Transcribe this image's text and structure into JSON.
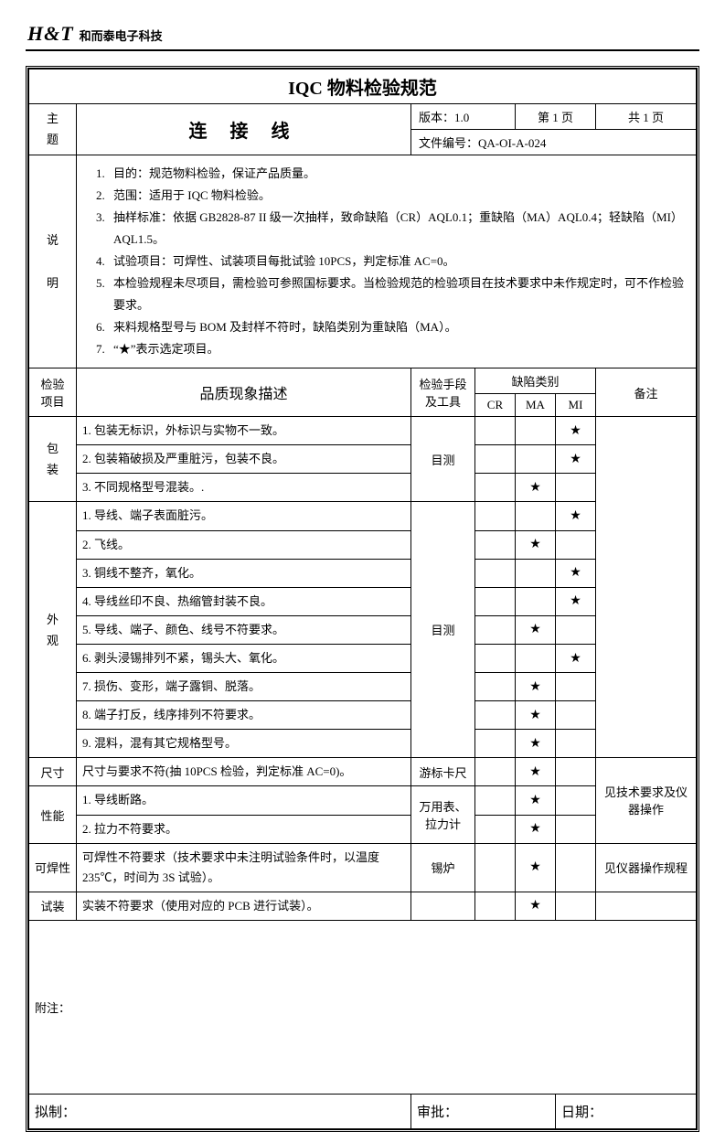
{
  "header": {
    "logo": "H&T",
    "company": "和而泰电子科技"
  },
  "doc": {
    "title": "IQC 物料检验规范",
    "subject_label": "主题",
    "subject": "连 接 线",
    "version_label": "版本：",
    "version": "1.0",
    "page_label": "第 1 页",
    "total_label": "共 1 页",
    "docno_label": "文件编号：",
    "docno": "QA-OI-A-024"
  },
  "explain": {
    "label": "说明",
    "items": [
      "目的：规范物料检验，保证产品质量。",
      "范围：适用于 IQC 物料检验。",
      "抽样标准：依据 GB2828-87 II 级一次抽样，致命缺陷（CR）AQL0.1；重缺陷（MA）AQL0.4；轻缺陷（MI）AQL1.5。",
      "试验项目：可焊性、试装项目每批试验 10PCS，判定标准 AC=0。",
      "本检验规程未尽项目，需检验可参照国标要求。当检验规范的检验项目在技术要求中未作规定时，可不作检验要求。",
      "来料规格型号与 BOM 及封样不符时，缺陷类别为重缺陷（MA）。",
      "“★”表示选定项目。"
    ]
  },
  "columns": {
    "item": "检验项目",
    "desc": "品质现象描述",
    "tool": "检验手段及工具",
    "defect": "缺陷类别",
    "cr": "CR",
    "ma": "MA",
    "mi": "MI",
    "remark": "备注"
  },
  "groups": [
    {
      "name": "包装",
      "tool": "目测",
      "remark": "",
      "rows": [
        {
          "n": "1.",
          "t": "包装无标识，外标识与实物不一致。",
          "cr": "",
          "ma": "",
          "mi": "★"
        },
        {
          "n": "2.",
          "t": "包装箱破损及严重脏污，包装不良。",
          "cr": "",
          "ma": "",
          "mi": "★"
        },
        {
          "n": "3.",
          "t": "不同规格型号混装。.",
          "cr": "",
          "ma": "★",
          "mi": ""
        }
      ]
    },
    {
      "name": "外观",
      "tool": "目测",
      "remark": "",
      "rows": [
        {
          "n": "1.",
          "t": "导线、端子表面脏污。",
          "cr": "",
          "ma": "",
          "mi": "★"
        },
        {
          "n": "2.",
          "t": "飞线。",
          "cr": "",
          "ma": "★",
          "mi": ""
        },
        {
          "n": "3.",
          "t": "铜线不整齐，氧化。",
          "cr": "",
          "ma": "",
          "mi": "★"
        },
        {
          "n": "4.",
          "t": "导线丝印不良、热缩管封装不良。",
          "cr": "",
          "ma": "",
          "mi": "★"
        },
        {
          "n": "5.",
          "t": "导线、端子、颜色、线号不符要求。",
          "cr": "",
          "ma": "★",
          "mi": ""
        },
        {
          "n": "6.",
          "t": "剥头浸锡排列不紧，锡头大、氧化。",
          "cr": "",
          "ma": "",
          "mi": "★"
        },
        {
          "n": "7.",
          "t": "损伤、变形，端子露铜、脱落。",
          "cr": "",
          "ma": "★",
          "mi": ""
        },
        {
          "n": "8.",
          "t": "端子打反，线序排列不符要求。",
          "cr": "",
          "ma": "★",
          "mi": ""
        },
        {
          "n": "9.",
          "t": "混料，混有其它规格型号。",
          "cr": "",
          "ma": "★",
          "mi": ""
        }
      ]
    }
  ],
  "singles": [
    {
      "name": "尺寸",
      "desc": "尺寸与要求不符(抽 10PCS 检验，判定标准 AC=0)。",
      "tool": "游标卡尺",
      "cr": "",
      "ma": "★",
      "mi": "",
      "remark": ""
    },
    {
      "name": "性能",
      "rows": [
        {
          "n": "1.",
          "t": "导线断路。",
          "cr": "",
          "ma": "★",
          "mi": ""
        },
        {
          "n": "2.",
          "t": "拉力不符要求。",
          "cr": "",
          "ma": "★",
          "mi": ""
        }
      ],
      "tool": "万用表、拉力计",
      "remark": "见技术要求及仪器操作",
      "remark_span_prev": true
    },
    {
      "name": "可焊性",
      "desc": "可焊性不符要求（技术要求中未注明试验条件时，以温度 235℃，时间为 3S 试验）。",
      "tool": "锡炉",
      "cr": "",
      "ma": "★",
      "mi": "",
      "remark": "见仪器操作规程"
    },
    {
      "name": "试装",
      "desc": "实装不符要求（使用对应的 PCB 进行试装）。",
      "tool": "",
      "cr": "",
      "ma": "★",
      "mi": "",
      "remark": ""
    }
  ],
  "appendix_label": "附注：",
  "sign": {
    "make": "拟制：",
    "approve": "审批：",
    "date": "日期："
  },
  "star": "★"
}
